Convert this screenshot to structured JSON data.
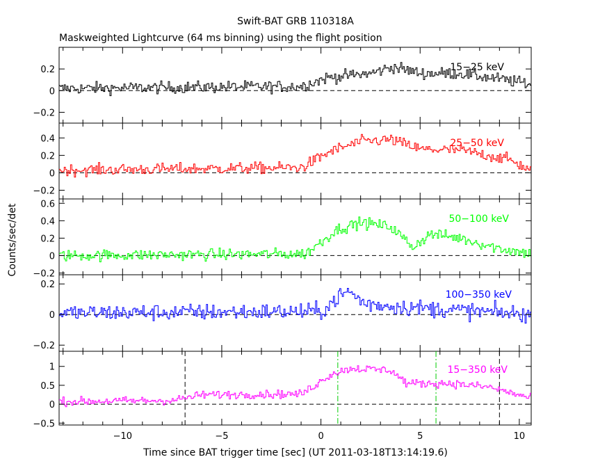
{
  "chart_data": {
    "type": "line",
    "title": "Swift-BAT GRB 110318A",
    "subtitle": "Maskweighted Lightcurve (64 ms binning) using the flight position",
    "xlabel": "Time since BAT trigger time [sec] (UT 2011-03-18T13:14:19.6)",
    "ylabel": "Counts/sec/det",
    "xlim": [
      -13.2,
      10.6
    ],
    "x_ticks": [
      -10,
      -5,
      0,
      5,
      10
    ],
    "x_tick_labels": [
      "−10",
      "−5",
      "0",
      "5",
      "10"
    ],
    "panels": [
      {
        "label": "15−25 keV",
        "color": "#000000",
        "ylim": [
          -0.3,
          0.4
        ],
        "y_ticks": [
          -0.2,
          0,
          0.2
        ],
        "y_tick_labels": [
          "−0.2",
          "0",
          "0.2"
        ],
        "profile": [
          [
            -13.2,
            0.02
          ],
          [
            -1.0,
            0.04
          ],
          [
            0.3,
            0.12
          ],
          [
            2.5,
            0.16
          ],
          [
            3.6,
            0.22
          ],
          [
            5.0,
            0.16
          ],
          [
            7.0,
            0.16
          ],
          [
            10.6,
            0.06
          ]
        ],
        "noise": 0.05
      },
      {
        "label": "25−50 keV",
        "color": "#ff0000",
        "ylim": [
          -0.3,
          0.57
        ],
        "y_ticks": [
          -0.2,
          0,
          0.2,
          0.4
        ],
        "y_tick_labels": [
          "−0.2",
          "0",
          "0.2",
          "0.4"
        ],
        "profile": [
          [
            -13.2,
            0.03
          ],
          [
            -1.0,
            0.06
          ],
          [
            0.5,
            0.25
          ],
          [
            2.0,
            0.36
          ],
          [
            3.5,
            0.38
          ],
          [
            5.0,
            0.27
          ],
          [
            7.0,
            0.26
          ],
          [
            9.5,
            0.15
          ],
          [
            10.6,
            0.02
          ]
        ],
        "noise": 0.06
      },
      {
        "label": "50−100 keV",
        "color": "#00ff00",
        "ylim": [
          -0.22,
          0.65
        ],
        "y_ticks": [
          -0.2,
          0,
          0.2,
          0.4,
          0.6
        ],
        "y_tick_labels": [
          "−0.2",
          "0",
          "0.2",
          "0.4",
          "0.6"
        ],
        "profile": [
          [
            -13.2,
            0.0
          ],
          [
            -0.8,
            0.02
          ],
          [
            0.8,
            0.3
          ],
          [
            2.0,
            0.38
          ],
          [
            3.5,
            0.33
          ],
          [
            4.6,
            0.1
          ],
          [
            5.5,
            0.25
          ],
          [
            7.0,
            0.2
          ],
          [
            9.0,
            0.08
          ],
          [
            10.6,
            0.02
          ]
        ],
        "noise": 0.06
      },
      {
        "label": "100−350 keV",
        "color": "#0000ff",
        "ylim": [
          -0.24,
          0.26
        ],
        "y_ticks": [
          -0.2,
          0,
          0.2
        ],
        "y_tick_labels": [
          "−0.2",
          "0",
          "0.2"
        ],
        "profile": [
          [
            -13.2,
            0.01
          ],
          [
            0.0,
            0.02
          ],
          [
            1.0,
            0.13
          ],
          [
            1.4,
            0.15
          ],
          [
            2.2,
            0.07
          ],
          [
            4.0,
            0.05
          ],
          [
            10.6,
            0.0
          ]
        ],
        "noise": 0.05
      },
      {
        "label": "15−350 keV",
        "color": "#ff00ff",
        "ylim": [
          -0.55,
          1.4
        ],
        "y_ticks": [
          -0.5,
          0,
          0.5,
          1
        ],
        "y_tick_labels": [
          "−0.5",
          "0",
          "0.5",
          "1"
        ],
        "profile": [
          [
            -13.2,
            0.07
          ],
          [
            -7.5,
            0.1
          ],
          [
            -6.0,
            0.25
          ],
          [
            -1.0,
            0.27
          ],
          [
            0.5,
            0.8
          ],
          [
            1.5,
            0.95
          ],
          [
            3.5,
            0.9
          ],
          [
            4.3,
            0.55
          ],
          [
            6.5,
            0.55
          ],
          [
            8.5,
            0.45
          ],
          [
            10.6,
            0.15
          ]
        ],
        "noise": 0.1,
        "markers": [
          {
            "x": -6.85,
            "style": "black-dash"
          },
          {
            "x": 0.85,
            "style": "green-dashdot"
          },
          {
            "x": 5.8,
            "style": "green-dashdot"
          },
          {
            "x": 9.0,
            "style": "black-dash"
          }
        ]
      }
    ]
  }
}
